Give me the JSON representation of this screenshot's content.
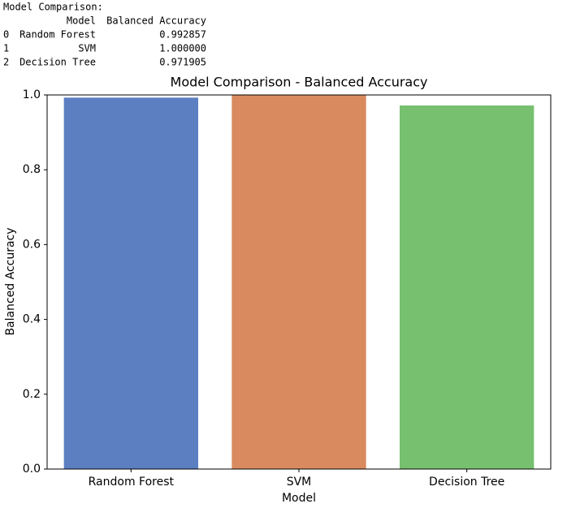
{
  "output": {
    "heading": "Model Comparison:",
    "columns": [
      "Model",
      "Balanced Accuracy"
    ],
    "rows": [
      [
        "0",
        "Random Forest",
        "0.992857"
      ],
      [
        "1",
        "SVM",
        "1.000000"
      ],
      [
        "2",
        "Decision Tree",
        "0.971905"
      ]
    ]
  },
  "chart_data": {
    "type": "bar",
    "title": "Model Comparison - Balanced Accuracy",
    "x_label": "Model",
    "y_label": "Balanced Accuracy",
    "categories": [
      "Random Forest",
      "SVM",
      "Decision Tree"
    ],
    "values": [
      0.992857,
      1.0,
      0.971905
    ],
    "colors": [
      "#5b7fc1",
      "#d98b5f",
      "#77c070"
    ],
    "ylim": [
      0,
      1
    ],
    "yticks": [
      {
        "value": 0,
        "label": "0.0"
      },
      {
        "value": 0.2,
        "label": "0.2"
      },
      {
        "value": 0.4,
        "label": "0.4"
      },
      {
        "value": 0.6,
        "label": "0.6"
      },
      {
        "value": 0.8,
        "label": "0.8"
      },
      {
        "value": 1,
        "label": "1.0"
      }
    ]
  }
}
